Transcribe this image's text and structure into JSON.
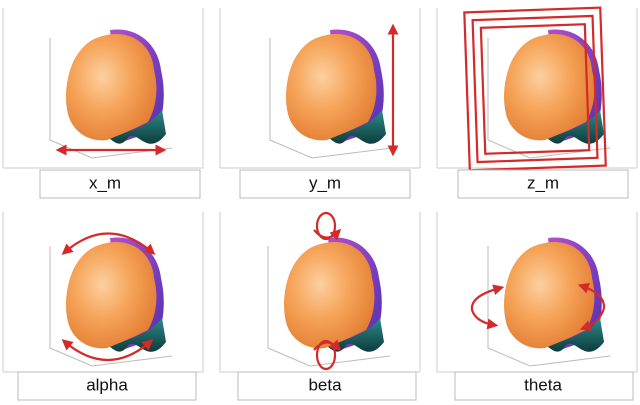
{
  "panels": [
    {
      "label": "x_m"
    },
    {
      "label": "y_m"
    },
    {
      "label": "z_m"
    },
    {
      "label": "alpha"
    },
    {
      "label": "beta"
    },
    {
      "label": "theta"
    }
  ]
}
